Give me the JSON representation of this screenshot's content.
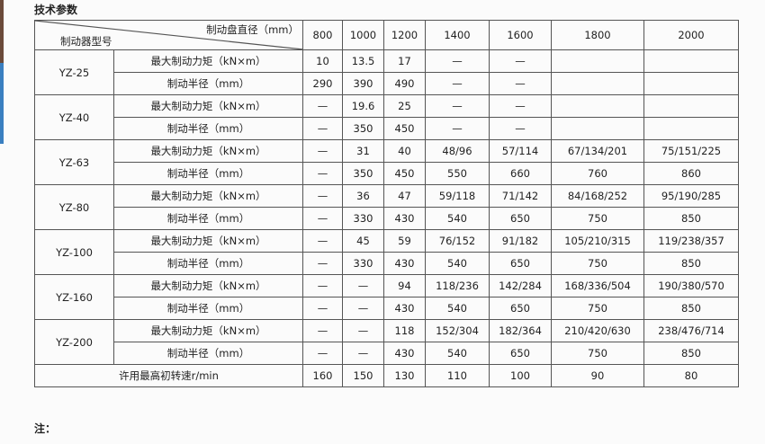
{
  "title": "技术参数",
  "note": "注：",
  "header": {
    "diameter_label": "制动盘直径（mm）",
    "model_label": "制动器型号",
    "diameters": [
      "800",
      "1000",
      "1200",
      "1400",
      "1600",
      "1800",
      "2000"
    ]
  },
  "param_labels": {
    "torque": "最大制动力矩（kN×m）",
    "radius": "制动半径（mm）"
  },
  "models": [
    {
      "name": "YZ-25",
      "torque": [
        "10",
        "13.5",
        "17",
        "—",
        "—",
        "",
        ""
      ],
      "radius": [
        "290",
        "390",
        "490",
        "—",
        "—",
        "",
        ""
      ]
    },
    {
      "name": "YZ-40",
      "torque": [
        "—",
        "19.6",
        "25",
        "—",
        "—",
        "",
        ""
      ],
      "radius": [
        "—",
        "350",
        "450",
        "—",
        "—",
        "",
        ""
      ]
    },
    {
      "name": "YZ-63",
      "torque": [
        "—",
        "31",
        "40",
        "48/96",
        "57/114",
        "67/134/201",
        "75/151/225"
      ],
      "radius": [
        "—",
        "350",
        "450",
        "550",
        "660",
        "760",
        "860"
      ]
    },
    {
      "name": "YZ-80",
      "torque": [
        "—",
        "36",
        "47",
        "59/118",
        "71/142",
        "84/168/252",
        "95/190/285"
      ],
      "radius": [
        "—",
        "330",
        "430",
        "540",
        "650",
        "750",
        "850"
      ]
    },
    {
      "name": "YZ-100",
      "torque": [
        "—",
        "45",
        "59",
        "76/152",
        "91/182",
        "105/210/315",
        "119/238/357"
      ],
      "radius": [
        "—",
        "330",
        "430",
        "540",
        "650",
        "750",
        "850"
      ]
    },
    {
      "name": "YZ-160",
      "torque": [
        "—",
        "—",
        "94",
        "118/236",
        "142/284",
        "168/336/504",
        "190/380/570"
      ],
      "radius": [
        "—",
        "—",
        "430",
        "540",
        "650",
        "750",
        "850"
      ]
    },
    {
      "name": "YZ-200",
      "torque": [
        "—",
        "—",
        "118",
        "152/304",
        "182/364",
        "210/420/630",
        "238/476/714"
      ],
      "radius": [
        "—",
        "—",
        "430",
        "540",
        "650",
        "750",
        "850"
      ]
    }
  ],
  "speed": {
    "label": "许用最高初转速r/min",
    "values": [
      "160",
      "150",
      "130",
      "110",
      "100",
      "90",
      "80"
    ]
  }
}
